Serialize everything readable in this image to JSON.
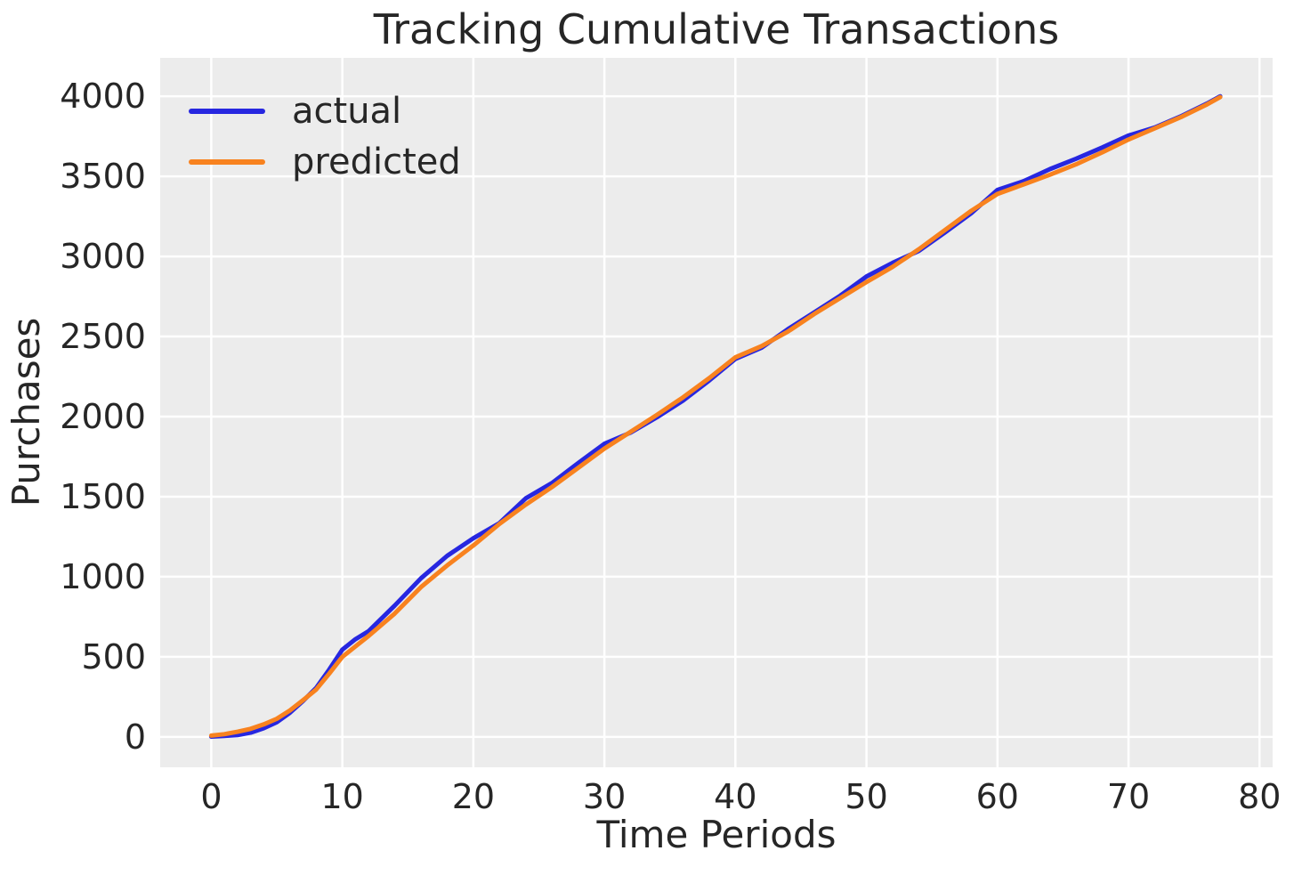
{
  "figure": {
    "title": "Tracking Cumulative Transactions",
    "xlabel": "Time Periods",
    "ylabel": "Purchases"
  },
  "chart_data": {
    "type": "line",
    "title": "Tracking Cumulative Transactions",
    "xlabel": "Time Periods",
    "ylabel": "Purchases",
    "xlim": [
      -3.9,
      81
    ],
    "ylim": [
      -190,
      4240
    ],
    "x_ticks": [
      0,
      10,
      20,
      30,
      40,
      50,
      60,
      70,
      80
    ],
    "y_ticks": [
      0,
      500,
      1000,
      1500,
      2000,
      2500,
      3000,
      3500,
      4000
    ],
    "grid": true,
    "legend_position": "upper left",
    "colors": {
      "figure_background": "#ffffff",
      "axes_background": "#ececec",
      "gridline": "#ffffff",
      "text": "#262626",
      "actual": "#2727e0",
      "predicted": "#f8821f"
    },
    "x": [
      0,
      1,
      2,
      3,
      4,
      5,
      6,
      7,
      8,
      9,
      10,
      11,
      12,
      14,
      16,
      18,
      20,
      22,
      24,
      26,
      28,
      30,
      32,
      34,
      36,
      38,
      40,
      42,
      44,
      46,
      48,
      50,
      52,
      54,
      56,
      58,
      60,
      62,
      64,
      66,
      68,
      70,
      72,
      74,
      76,
      77
    ],
    "series": [
      {
        "name": "actual",
        "color": "#2727e0",
        "values": [
          2,
          6,
          11,
          26,
          54,
          91,
          151,
          224,
          305,
          420,
          545,
          610,
          660,
          820,
          990,
          1130,
          1240,
          1335,
          1490,
          1585,
          1710,
          1830,
          1900,
          1995,
          2100,
          2225,
          2360,
          2430,
          2545,
          2650,
          2755,
          2875,
          2960,
          3035,
          3150,
          3270,
          3415,
          3470,
          3545,
          3610,
          3680,
          3755,
          3805,
          3875,
          3955,
          4000
        ]
      },
      {
        "name": "predicted",
        "color": "#f8821f",
        "values": [
          8,
          17,
          32,
          50,
          78,
          113,
          165,
          229,
          295,
          395,
          500,
          565,
          630,
          770,
          935,
          1070,
          1195,
          1330,
          1450,
          1560,
          1680,
          1800,
          1905,
          2010,
          2120,
          2240,
          2370,
          2440,
          2530,
          2640,
          2740,
          2840,
          2935,
          3045,
          3165,
          3285,
          3390,
          3450,
          3510,
          3575,
          3650,
          3730,
          3800,
          3870,
          3950,
          3995
        ]
      }
    ]
  }
}
